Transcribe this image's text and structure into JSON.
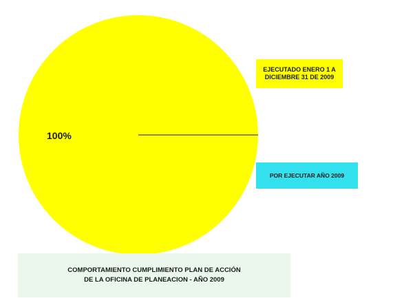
{
  "chart_data": {
    "type": "pie",
    "title": "COMPORTAMIENTO CUMPLIMIENTO PLAN DE ACCIÓN\nDE LA OFICINA DE PLANEACION  - AÑO 2009",
    "slices": [
      {
        "label": "EJECUTADO ENERO 1 A\nDICIEMBRE 31  DE 2009",
        "value": 100,
        "data_label": "100%",
        "color": "#ffff00"
      },
      {
        "label": "POR EJECUTAR  AÑO 2009",
        "value": 0,
        "data_label": "",
        "color": "#00e5ee"
      }
    ],
    "legend_placement": "right",
    "legend_colors": {
      "executed": "#ffff00",
      "pending": "#33e0ee"
    }
  },
  "style": {
    "pie_fill": "#ffff00",
    "radius_line_color": "#8f8a3a",
    "title_background": "#eaf7ea"
  }
}
